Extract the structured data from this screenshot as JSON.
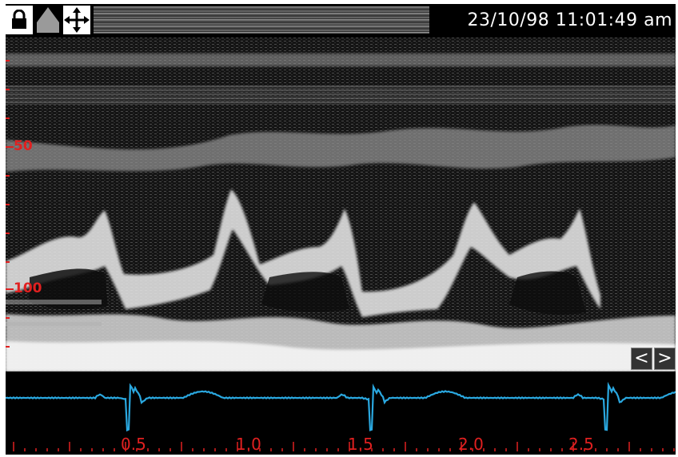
{
  "toolbar": {
    "tools": [
      {
        "name": "lock",
        "icon": "lock-icon"
      },
      {
        "name": "triangle",
        "icon": "triangle-icon"
      },
      {
        "name": "move",
        "icon": "move-arrows-icon"
      }
    ],
    "timestamp": "23/10/98 11:01:49 am"
  },
  "mmode": {
    "depth_labels": [
      "50",
      "100"
    ],
    "scroll_left_label": "<",
    "scroll_right_label": ">"
  },
  "ecg": {
    "time_labels": [
      "0.5",
      "1.0",
      "1.5",
      "2.0",
      "2.5"
    ],
    "trace_color": "#2aa8e0",
    "label_color": "#e02020"
  }
}
